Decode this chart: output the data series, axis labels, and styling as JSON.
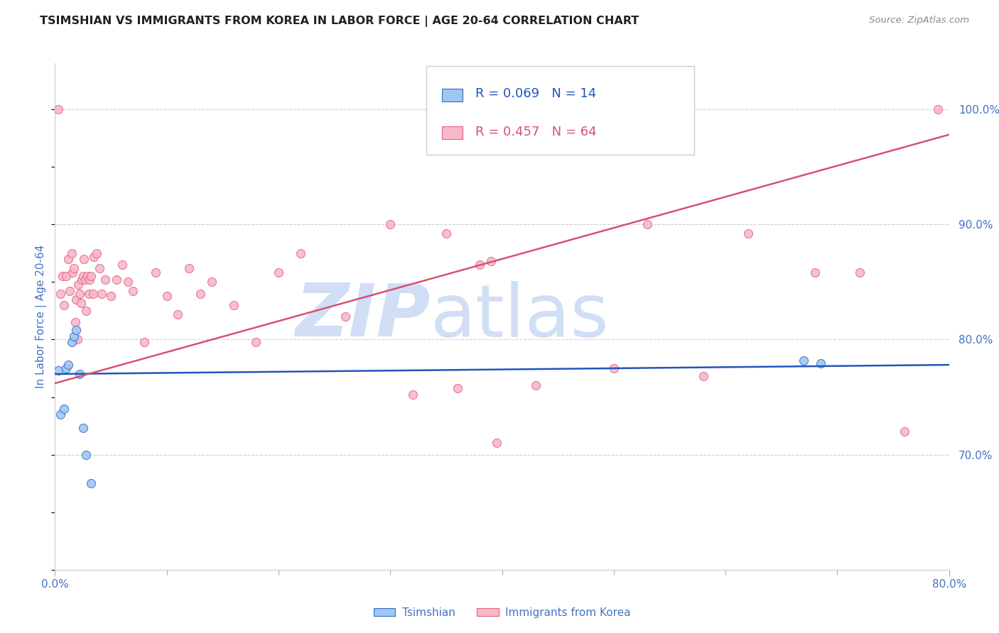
{
  "title": "TSIMSHIAN VS IMMIGRANTS FROM KOREA IN LABOR FORCE | AGE 20-64 CORRELATION CHART",
  "source": "Source: ZipAtlas.com",
  "ylabel": "In Labor Force | Age 20-64",
  "xlim": [
    0.0,
    0.8
  ],
  "ylim": [
    0.6,
    1.04
  ],
  "yticks_right": [
    0.7,
    0.8,
    0.9,
    1.0
  ],
  "ytick_right_labels": [
    "70.0%",
    "80.0%",
    "90.0%",
    "100.0%"
  ],
  "legend_blue_r": "R = 0.069",
  "legend_blue_n": "N = 14",
  "legend_pink_r": "R = 0.457",
  "legend_pink_n": "N = 64",
  "legend_label_blue": "Tsimshian",
  "legend_label_pink": "Immigrants from Korea",
  "blue_scatter_x": [
    0.003,
    0.005,
    0.008,
    0.01,
    0.012,
    0.015,
    0.017,
    0.019,
    0.022,
    0.025,
    0.028,
    0.032,
    0.67,
    0.685
  ],
  "blue_scatter_y": [
    0.773,
    0.735,
    0.74,
    0.775,
    0.778,
    0.798,
    0.803,
    0.808,
    0.77,
    0.723,
    0.7,
    0.675,
    0.782,
    0.779
  ],
  "pink_scatter_x": [
    0.003,
    0.005,
    0.007,
    0.008,
    0.01,
    0.012,
    0.013,
    0.015,
    0.016,
    0.017,
    0.018,
    0.019,
    0.02,
    0.021,
    0.022,
    0.023,
    0.024,
    0.025,
    0.026,
    0.027,
    0.028,
    0.029,
    0.03,
    0.031,
    0.032,
    0.034,
    0.035,
    0.037,
    0.04,
    0.042,
    0.045,
    0.05,
    0.055,
    0.06,
    0.065,
    0.07,
    0.08,
    0.09,
    0.1,
    0.11,
    0.12,
    0.13,
    0.14,
    0.16,
    0.18,
    0.2,
    0.22,
    0.26,
    0.3,
    0.32,
    0.35,
    0.36,
    0.38,
    0.39,
    0.395,
    0.43,
    0.5,
    0.53,
    0.58,
    0.62,
    0.68,
    0.72,
    0.76,
    0.79
  ],
  "pink_scatter_y": [
    1.0,
    0.84,
    0.855,
    0.83,
    0.855,
    0.87,
    0.842,
    0.875,
    0.858,
    0.862,
    0.815,
    0.835,
    0.8,
    0.848,
    0.84,
    0.832,
    0.852,
    0.855,
    0.87,
    0.852,
    0.825,
    0.855,
    0.84,
    0.852,
    0.855,
    0.84,
    0.872,
    0.875,
    0.862,
    0.84,
    0.852,
    0.838,
    0.852,
    0.865,
    0.85,
    0.842,
    0.798,
    0.858,
    0.838,
    0.822,
    0.862,
    0.84,
    0.85,
    0.83,
    0.798,
    0.858,
    0.875,
    0.82,
    0.9,
    0.752,
    0.892,
    0.758,
    0.865,
    0.868,
    0.71,
    0.76,
    0.775,
    0.9,
    0.768,
    0.892,
    0.858,
    0.858,
    0.72,
    1.0
  ],
  "blue_line_x": [
    0.0,
    0.8
  ],
  "blue_line_y": [
    0.77,
    0.778
  ],
  "pink_line_x": [
    0.0,
    0.8
  ],
  "pink_line_y": [
    0.762,
    0.978
  ],
  "dot_size": 75,
  "blue_dot_color": "#9ec8f0",
  "blue_dot_edge": "#3366cc",
  "pink_dot_color": "#f8b8c8",
  "pink_dot_edge": "#e06080",
  "blue_line_color": "#2255bb",
  "pink_line_color": "#d85070",
  "watermark_zip": "ZIP",
  "watermark_atlas": "atlas",
  "watermark_color": "#d0dff5",
  "title_fontsize": 11.5,
  "axis_label_color": "#4472c4",
  "grid_color": "#d0d0d0",
  "background_color": "#ffffff"
}
